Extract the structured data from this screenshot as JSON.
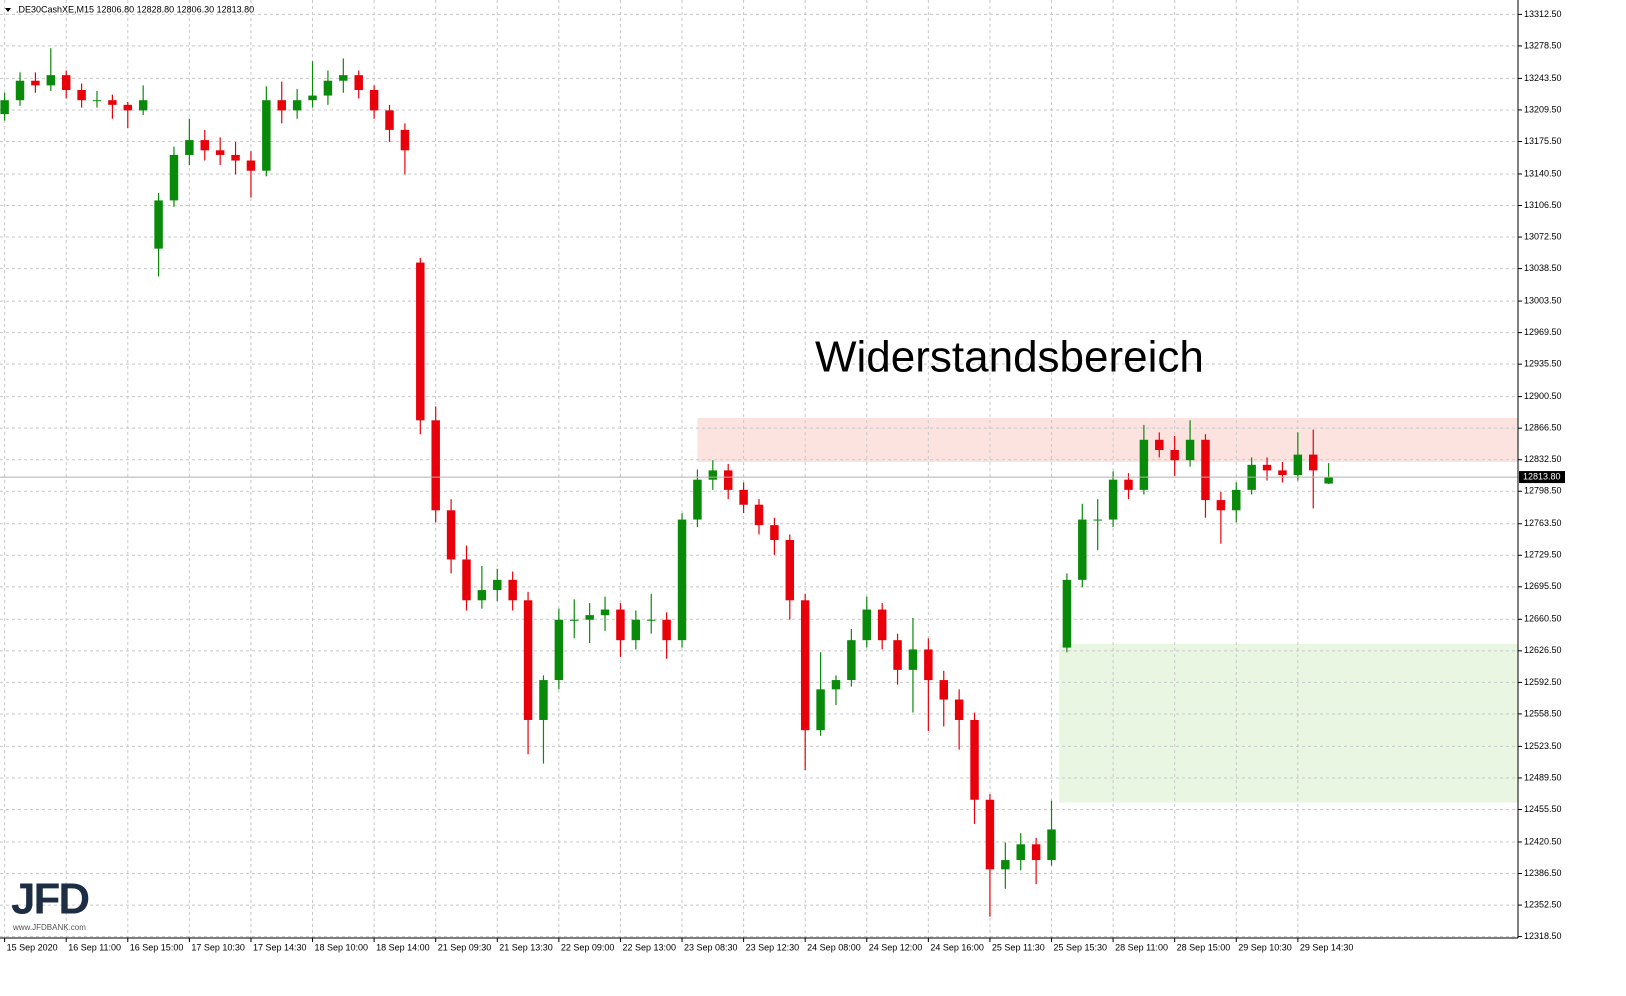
{
  "chart_data": {
    "type": "candlestick",
    "header": ".DE30CashXE,M15  12806.80 12828.80 12806.30 12813.80",
    "annotation": "Widerstandsbereich",
    "logo": {
      "name": "JFD",
      "url": "www.JFDBANK.com"
    },
    "up_color": "#0a8a0a",
    "down_color": "#e8000b",
    "grid": true,
    "xlim": [
      -0.3,
      98.3
    ],
    "ylim": [
      12317,
      13328
    ],
    "open": [
      13205,
      13220,
      13241,
      13236,
      13247,
      13231,
      13220,
      13220,
      13215,
      13209,
      13060,
      13112,
      13161,
      13177,
      13166,
      13161,
      13155,
      13144,
      13220,
      13209,
      13220,
      13225,
      13241,
      13247,
      13231,
      13209,
      13188,
      13045,
      12875,
      12778,
      12725,
      12681,
      12692,
      12703,
      12681,
      12552,
      12595,
      12660,
      12660,
      12665,
      12671,
      12638,
      12660,
      12660,
      12638,
      12768,
      12811,
      12821,
      12800,
      12784,
      12762,
      12746,
      12681,
      12541,
      12585,
      12595,
      12638,
      12671,
      12638,
      12606,
      12628,
      12595,
      12574,
      12552,
      12466,
      12391,
      12401,
      12418,
      12401,
      12630,
      12703,
      12768,
      12768,
      12811,
      12800,
      12854,
      12843,
      12832,
      12854,
      12789,
      12778,
      12800,
      12827,
      12821,
      12816,
      12838,
      12806.8
    ],
    "high": [
      13228,
      13250,
      13250,
      13276,
      13252,
      13238,
      13230,
      13226,
      13218,
      13236,
      13120,
      13170,
      13200,
      13188,
      13180,
      13175,
      13165,
      13235,
      13240,
      13232,
      13262,
      13252,
      13265,
      13252,
      13236,
      13215,
      13195,
      13050,
      12890,
      12790,
      12740,
      12718,
      12715,
      12712,
      12690,
      12600,
      12672,
      12682,
      12678,
      12685,
      12678,
      12670,
      12688,
      12668,
      12775,
      12822,
      12832,
      12828,
      12808,
      12790,
      12770,
      12752,
      12688,
      12625,
      12600,
      12650,
      12685,
      12678,
      12645,
      12662,
      12640,
      12605,
      12585,
      12560,
      12472,
      12420,
      12430,
      12425,
      12465,
      12710,
      12785,
      12790,
      12820,
      12818,
      12870,
      12862,
      12858,
      12875,
      12860,
      12798,
      12808,
      12835,
      12835,
      12830,
      12862,
      12865,
      12828.8
    ],
    "low": [
      13198,
      13214,
      13228,
      13230,
      13222,
      13212,
      13212,
      13200,
      13190,
      13204,
      13030,
      13105,
      13150,
      13155,
      13150,
      13140,
      13115,
      13138,
      13195,
      13200,
      13212,
      13215,
      13228,
      13222,
      13200,
      13175,
      13140,
      12860,
      12765,
      12710,
      12670,
      12672,
      12680,
      12670,
      12515,
      12505,
      12585,
      12640,
      12635,
      12648,
      12620,
      12628,
      12645,
      12618,
      12630,
      12760,
      12800,
      12790,
      12775,
      12752,
      12730,
      12660,
      12498,
      12535,
      12568,
      12588,
      12630,
      12628,
      12590,
      12560,
      12540,
      12545,
      12520,
      12440,
      12340,
      12370,
      12390,
      12375,
      12395,
      12625,
      12695,
      12735,
      12760,
      12790,
      12795,
      12835,
      12815,
      12825,
      12770,
      12742,
      12765,
      12795,
      12810,
      12808,
      12810,
      12780,
      12806.3
    ],
    "close": [
      13220,
      13241,
      13236,
      13247,
      13231,
      13220,
      13220,
      13215,
      13209,
      13220,
      13112,
      13161,
      13177,
      13166,
      13161,
      13155,
      13144,
      13220,
      13209,
      13220,
      13225,
      13241,
      13247,
      13231,
      13209,
      13188,
      13166,
      12875,
      12778,
      12725,
      12681,
      12692,
      12703,
      12681,
      12552,
      12595,
      12660,
      12660,
      12665,
      12671,
      12638,
      12660,
      12660,
      12638,
      12768,
      12811,
      12821,
      12800,
      12784,
      12762,
      12746,
      12681,
      12541,
      12585,
      12595,
      12638,
      12671,
      12638,
      12606,
      12628,
      12595,
      12574,
      12552,
      12466,
      12391,
      12401,
      12418,
      12401,
      12434,
      12703,
      12768,
      12768,
      12811,
      12800,
      12854,
      12843,
      12832,
      12854,
      12789,
      12778,
      12800,
      12827,
      12821,
      12816,
      12838,
      12821,
      12813.8
    ],
    "current_price": {
      "value": 12813.8,
      "label": "12813.80"
    },
    "zones": [
      {
        "from_x": 45,
        "low": 12830,
        "high": 12877.5,
        "color": "#fde3e0"
      },
      {
        "from_x": 68.5,
        "low": 12463,
        "high": 12634,
        "color": "#e9f6e1"
      }
    ],
    "xticks": [
      {
        "value": 0,
        "label": "15 Sep 2020"
      },
      {
        "value": 4,
        "label": "16 Sep 11:00"
      },
      {
        "value": 8,
        "label": "16 Sep 15:00"
      },
      {
        "value": 12,
        "label": "17 Sep 10:30"
      },
      {
        "value": 16,
        "label": "17 Sep 14:30"
      },
      {
        "value": 20,
        "label": "18 Sep 10:00"
      },
      {
        "value": 24,
        "label": "18 Sep 14:00"
      },
      {
        "value": 28,
        "label": "21 Sep 09:30"
      },
      {
        "value": 32,
        "label": "21 Sep 13:30"
      },
      {
        "value": 36,
        "label": "22 Sep 09:00"
      },
      {
        "value": 40,
        "label": "22 Sep 13:00"
      },
      {
        "value": 44,
        "label": "23 Sep 08:30"
      },
      {
        "value": 48,
        "label": "23 Sep 12:30"
      },
      {
        "value": 52,
        "label": "24 Sep 08:00"
      },
      {
        "value": 56,
        "label": "24 Sep 12:00"
      },
      {
        "value": 60,
        "label": "24 Sep 16:00"
      },
      {
        "value": 64,
        "label": "25 Sep 11:30"
      },
      {
        "value": 68,
        "label": "25 Sep 15:30"
      },
      {
        "value": 72,
        "label": "28 Sep 11:00"
      },
      {
        "value": 76,
        "label": "28 Sep 15:00"
      },
      {
        "value": 80,
        "label": "29 Sep 10:30"
      },
      {
        "value": 84,
        "label": "29 Sep 14:30"
      }
    ],
    "yticks": [
      {
        "value": 13312.5,
        "label": "13312.50"
      },
      {
        "value": 13278.5,
        "label": "13278.50"
      },
      {
        "value": 13243.5,
        "label": "13243.50"
      },
      {
        "value": 13209.5,
        "label": "13209.50"
      },
      {
        "value": 13175.5,
        "label": "13175.50"
      },
      {
        "value": 13140.5,
        "label": "13140.50"
      },
      {
        "value": 13106.5,
        "label": "13106.50"
      },
      {
        "value": 13072.5,
        "label": "13072.50"
      },
      {
        "value": 13038.5,
        "label": "13038.50"
      },
      {
        "value": 13003.5,
        "label": "13003.50"
      },
      {
        "value": 12969.5,
        "label": "12969.50"
      },
      {
        "value": 12935.5,
        "label": "12935.50"
      },
      {
        "value": 12900.5,
        "label": "12900.50"
      },
      {
        "value": 12866.5,
        "label": "12866.50"
      },
      {
        "value": 12832.5,
        "label": "12832.50"
      },
      {
        "value": 12798.5,
        "label": "12798.50"
      },
      {
        "value": 12763.5,
        "label": "12763.50"
      },
      {
        "value": 12729.5,
        "label": "12729.50"
      },
      {
        "value": 12695.5,
        "label": "12695.50"
      },
      {
        "value": 12660.5,
        "label": "12660.50"
      },
      {
        "value": 12626.5,
        "label": "12626.50"
      },
      {
        "value": 12592.5,
        "label": "12592.50"
      },
      {
        "value": 12558.5,
        "label": "12558.50"
      },
      {
        "value": 12523.5,
        "label": "12523.50"
      },
      {
        "value": 12489.5,
        "label": "12489.50"
      },
      {
        "value": 12455.5,
        "label": "12455.50"
      },
      {
        "value": 12420.5,
        "label": "12420.50"
      },
      {
        "value": 12386.5,
        "label": "12386.50"
      },
      {
        "value": 12352.5,
        "label": "12352.50"
      },
      {
        "value": 12318.5,
        "label": "12318.50"
      }
    ]
  }
}
